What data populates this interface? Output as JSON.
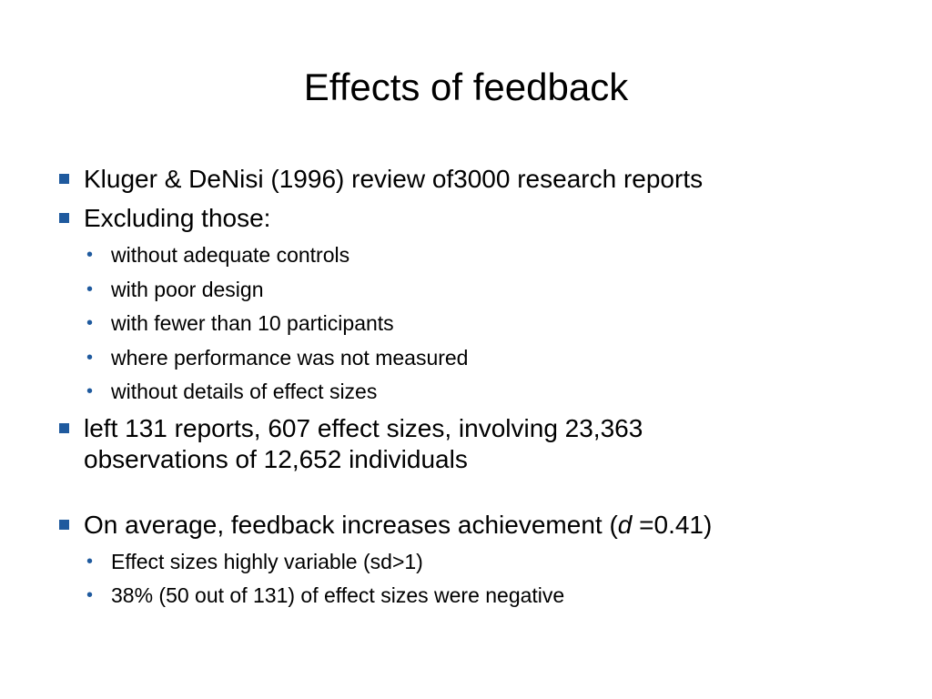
{
  "slide": {
    "title": "Effects of feedback",
    "accent_color": "#1f5a9e",
    "bullets": [
      {
        "level": 1,
        "text": "Kluger & DeNisi (1996) review of3000 research reports"
      },
      {
        "level": 1,
        "text": "Excluding those:"
      },
      {
        "level": 2,
        "text": "without adequate controls"
      },
      {
        "level": 2,
        "text": "with poor design"
      },
      {
        "level": 2,
        "text": "with fewer than 10 participants"
      },
      {
        "level": 2,
        "text": "where performance was not measured"
      },
      {
        "level": 2,
        "text": "without details of effect sizes"
      },
      {
        "level": 1,
        "text_line1": "left 131 reports, 607 effect sizes, involving 23,363",
        "text_line2": "observations of 12,652 individuals"
      },
      {
        "level": 1,
        "text_before": "On average, feedback increases achievement (",
        "italic": "d",
        "text_after": " =0.41)"
      },
      {
        "level": 2,
        "text": "Effect sizes highly variable (sd>1)"
      },
      {
        "level": 2,
        "text": "38% (50 out of 131) of effect sizes were negative"
      }
    ]
  }
}
